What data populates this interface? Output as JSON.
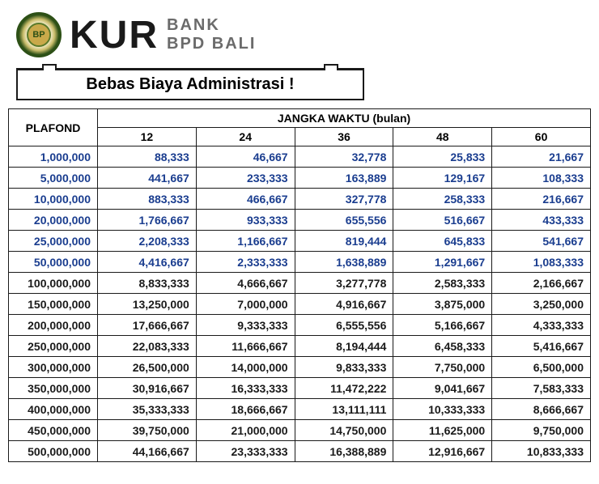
{
  "header": {
    "logo_text": "BP",
    "kur": "KUR",
    "bank_line1": "BANK",
    "bank_line2": "BPD BALI"
  },
  "banner": "Bebas Biaya Administrasi !",
  "table": {
    "plafond_header": "PLAFOND",
    "period_header": "JANGKA WAKTU (bulan)",
    "periods": [
      "12",
      "24",
      "36",
      "48",
      "60"
    ],
    "rows": [
      {
        "style": "blue",
        "plafond": "1,000,000",
        "v": [
          "88,333",
          "46,667",
          "32,778",
          "25,833",
          "21,667"
        ]
      },
      {
        "style": "blue",
        "plafond": "5,000,000",
        "v": [
          "441,667",
          "233,333",
          "163,889",
          "129,167",
          "108,333"
        ]
      },
      {
        "style": "blue",
        "plafond": "10,000,000",
        "v": [
          "883,333",
          "466,667",
          "327,778",
          "258,333",
          "216,667"
        ]
      },
      {
        "style": "blue",
        "plafond": "20,000,000",
        "v": [
          "1,766,667",
          "933,333",
          "655,556",
          "516,667",
          "433,333"
        ]
      },
      {
        "style": "blue",
        "plafond": "25,000,000",
        "v": [
          "2,208,333",
          "1,166,667",
          "819,444",
          "645,833",
          "541,667"
        ]
      },
      {
        "style": "blue",
        "plafond": "50,000,000",
        "v": [
          "4,416,667",
          "2,333,333",
          "1,638,889",
          "1,291,667",
          "1,083,333"
        ]
      },
      {
        "style": "black",
        "plafond": "100,000,000",
        "v": [
          "8,833,333",
          "4,666,667",
          "3,277,778",
          "2,583,333",
          "2,166,667"
        ]
      },
      {
        "style": "black",
        "plafond": "150,000,000",
        "v": [
          "13,250,000",
          "7,000,000",
          "4,916,667",
          "3,875,000",
          "3,250,000"
        ]
      },
      {
        "style": "black",
        "plafond": "200,000,000",
        "v": [
          "17,666,667",
          "9,333,333",
          "6,555,556",
          "5,166,667",
          "4,333,333"
        ]
      },
      {
        "style": "black",
        "plafond": "250,000,000",
        "v": [
          "22,083,333",
          "11,666,667",
          "8,194,444",
          "6,458,333",
          "5,416,667"
        ]
      },
      {
        "style": "black",
        "plafond": "300,000,000",
        "v": [
          "26,500,000",
          "14,000,000",
          "9,833,333",
          "7,750,000",
          "6,500,000"
        ]
      },
      {
        "style": "black",
        "plafond": "350,000,000",
        "v": [
          "30,916,667",
          "16,333,333",
          "11,472,222",
          "9,041,667",
          "7,583,333"
        ]
      },
      {
        "style": "black",
        "plafond": "400,000,000",
        "v": [
          "35,333,333",
          "18,666,667",
          "13,111,111",
          "10,333,333",
          "8,666,667"
        ]
      },
      {
        "style": "black",
        "plafond": "450,000,000",
        "v": [
          "39,750,000",
          "21,000,000",
          "14,750,000",
          "11,625,000",
          "9,750,000"
        ]
      },
      {
        "style": "black",
        "plafond": "500,000,000",
        "v": [
          "44,166,667",
          "23,333,333",
          "16,388,889",
          "12,916,667",
          "10,833,333"
        ]
      }
    ]
  },
  "colors": {
    "blue_text": "#1a3d8f",
    "black_text": "#1a1a1a",
    "border": "#1a1a1a",
    "background": "#ffffff"
  }
}
